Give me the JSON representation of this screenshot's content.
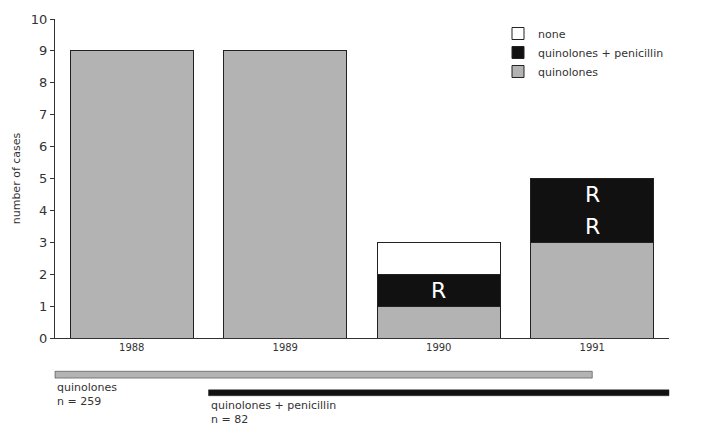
{
  "chart_data": {
    "type": "bar",
    "stacked": true,
    "ylabel": "number of cases",
    "categories": [
      "1988",
      "1989",
      "1990",
      "1991"
    ],
    "series": [
      {
        "name": "quinolones",
        "color": "#b3b3b3",
        "values": [
          9,
          9,
          1,
          3
        ]
      },
      {
        "name": "quinolones + penicillin",
        "color": "#111111",
        "values": [
          0,
          0,
          1,
          2
        ]
      },
      {
        "name": "none",
        "color": "#ffffff",
        "values": [
          0,
          0,
          1,
          0
        ]
      }
    ],
    "ylim": [
      0,
      10
    ],
    "yticks": [
      0,
      1,
      2,
      3,
      4,
      5,
      6,
      7,
      8,
      9,
      10
    ],
    "grid": false,
    "legend": "upper right",
    "annotations": [
      {
        "text": "R",
        "x": "1990",
        "y": 1.5
      },
      {
        "text": "R",
        "x": "1991",
        "y": 3.5
      },
      {
        "text": "R",
        "x": "1991",
        "y": 4.5
      }
    ],
    "periods": [
      {
        "label": "quinolones",
        "count_label": "n = 259",
        "start": 1987.5,
        "end": 1991.0,
        "color": "#b3b3b3"
      },
      {
        "label": "quinolones + penicillin",
        "count_label": "n = 82",
        "start": 1988.5,
        "end": 1991.5,
        "color": "#111111"
      }
    ]
  }
}
